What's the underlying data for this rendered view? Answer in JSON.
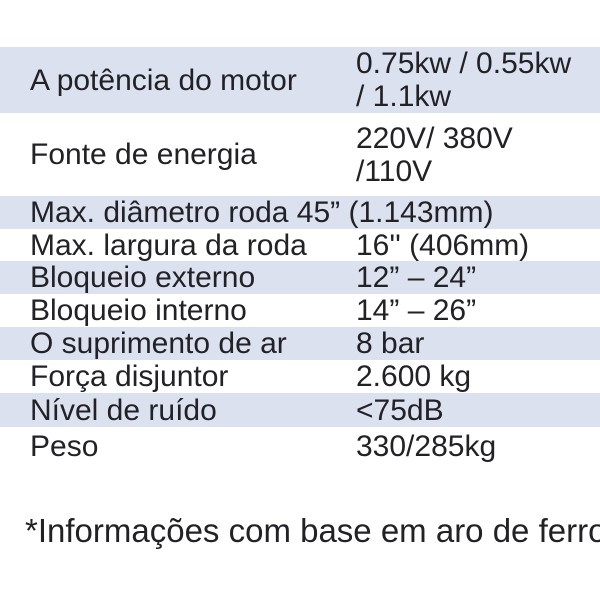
{
  "page": {
    "background_color": "#ffffff",
    "shaded_row_color": "#dce1f0",
    "text_color": "#212126"
  },
  "table": {
    "rows": [
      {
        "label": "A potência do motor",
        "value": "0.75kw / 0.55kw\n/ 1.1kw"
      },
      {
        "label": "Fonte de energia",
        "value": "220V/ 380V\n/110V"
      },
      {
        "label": "Max. diâmetro roda 45” (1.143mm)",
        "value": ""
      },
      {
        "label": "Max. largura da roda",
        "value": "16'' (406mm)"
      },
      {
        "label": "Bloqueio externo",
        "value": "12” – 24”"
      },
      {
        "label": "Bloqueio interno",
        "value": "14” – 26”"
      },
      {
        "label": "O suprimento de ar",
        "value": "8 bar"
      },
      {
        "label": "Força disjuntor",
        "value": "2.600 kg"
      },
      {
        "label": "Nível de ruído",
        "value": "<75dB"
      },
      {
        "label": "Peso",
        "value": "330/285kg"
      }
    ]
  },
  "footnote": {
    "text": "*Informações com base em aro de ferro"
  }
}
